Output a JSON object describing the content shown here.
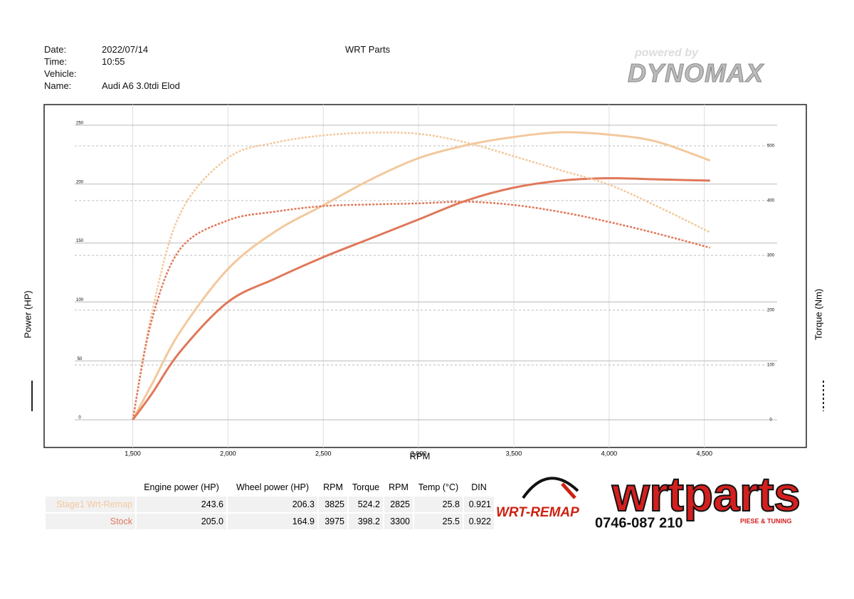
{
  "header": {
    "date_label": "Date:",
    "date": "2022/07/14",
    "time_label": "Time:",
    "time": "10:55",
    "vehicle_label": "Vehicle:",
    "name_label": "Name:",
    "name": "Audi A6 3.0tdi Elod",
    "company": "WRT Parts"
  },
  "logos": {
    "powered": "powered by",
    "dynomax": "DYNOMAX",
    "remap": "WRT-REMAP",
    "phone": "0746-087 210",
    "wrtparts": "wrtparts",
    "tagline": "PIESE & TUNING"
  },
  "chart_data": {
    "type": "line",
    "xlabel": "RPM",
    "ylabel": "Power (HP)",
    "y2label": "Torque (Nm)",
    "x": [
      1500,
      1600,
      1750,
      2000,
      2250,
      2500,
      2750,
      3000,
      3250,
      3500,
      3750,
      4000,
      4250,
      4530
    ],
    "series": [
      {
        "color": "#f3c89c",
        "style": "solid",
        "values": [
          0,
          30,
          75,
          128,
          160,
          182,
          204,
          222,
          233,
          240,
          244,
          242,
          236,
          220
        ]
      },
      {
        "color": "#e0785a",
        "style": "solid",
        "values": [
          0,
          22,
          58,
          100,
          120,
          138,
          154,
          170,
          186,
          197,
          203,
          205,
          204,
          203
        ]
      },
      {
        "color": "#f3c89c",
        "style": "dashed",
        "axis": "y2",
        "values": [
          0,
          195,
          377,
          478,
          506,
          519,
          524,
          522,
          506,
          481,
          455,
          429,
          390,
          342
        ]
      },
      {
        "color": "#e0785a",
        "style": "dashed",
        "axis": "y2",
        "values": [
          0,
          182,
          312,
          364,
          380,
          390,
          393,
          395,
          398,
          392,
          379,
          361,
          340,
          314
        ]
      }
    ],
    "xlim": [
      1035,
      5035
    ],
    "ylim": [
      -23.5,
      267.5
    ],
    "y2lim": [
      -50.6,
      575.3
    ],
    "xticks": [
      {
        "value": 1500,
        "label": "1,500"
      },
      {
        "value": 2000,
        "label": "2,000"
      },
      {
        "value": 2500,
        "label": "2,500"
      },
      {
        "value": 3000,
        "label": "3,000"
      },
      {
        "value": 3500,
        "label": "3,500"
      },
      {
        "value": 4000,
        "label": "4,000"
      },
      {
        "value": 4500,
        "label": "4,500"
      }
    ],
    "yticks": [
      0,
      50,
      100,
      150,
      200,
      250
    ],
    "y2ticks": [
      0,
      100,
      200,
      300,
      400,
      500
    ],
    "grid": true
  },
  "table": {
    "columns": [
      "Engine power (HP)",
      "Wheel power (HP)",
      "RPM",
      "Torque",
      "RPM",
      "Temp (°C)",
      "DIN"
    ],
    "rows": [
      {
        "label": "Stage1 Wrt-Remap",
        "color": "#f3c89c",
        "cells": [
          "243.6",
          "206.3",
          "3825",
          "524.2",
          "2825",
          "25.8",
          "0.921"
        ]
      },
      {
        "label": "Stock",
        "color": "#e0785a",
        "cells": [
          "205.0",
          "164.9",
          "3975",
          "398.2",
          "3300",
          "25.5",
          "0.922"
        ]
      }
    ]
  }
}
